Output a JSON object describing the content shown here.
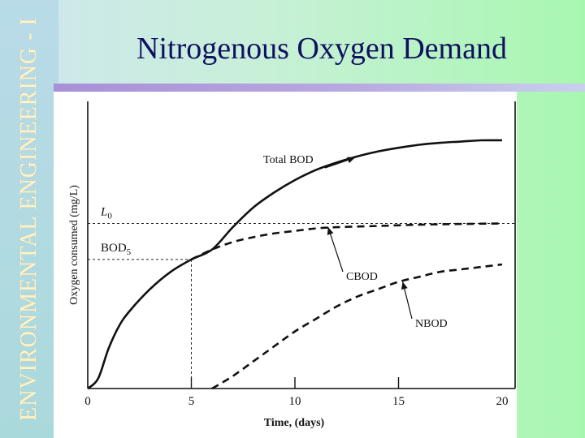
{
  "sidebar": {
    "text": "ENVIRONMENTAL ENGINEERING - I"
  },
  "title": "Nitrogenous Oxygen Demand",
  "chart_data": {
    "type": "line",
    "xlabel": "Time, (days)",
    "ylabel": "Oxygen consumed (mg/L)",
    "xlim": [
      0,
      20
    ],
    "ylim": [
      0,
      1
    ],
    "x_ticks": [
      0,
      5,
      10,
      15,
      20
    ],
    "x_tick_labels": [
      "0",
      "5",
      "10",
      "15",
      "20"
    ],
    "grid": false,
    "series": [
      {
        "name": "Total BOD",
        "style": "solid",
        "x": [
          0,
          0.5,
          1,
          1.5,
          2,
          3,
          4,
          5,
          6,
          7,
          8,
          9,
          10,
          11,
          12,
          13,
          14,
          15,
          16,
          17,
          18,
          19,
          20
        ],
        "y": [
          0,
          0.04,
          0.16,
          0.25,
          0.31,
          0.4,
          0.47,
          0.52,
          0.56,
          0.65,
          0.73,
          0.79,
          0.84,
          0.88,
          0.91,
          0.935,
          0.955,
          0.97,
          0.982,
          0.99,
          0.995,
          1.0,
          1.0
        ]
      },
      {
        "name": "CBOD",
        "style": "dashed",
        "x": [
          5,
          6,
          7,
          8,
          9,
          10,
          11,
          12,
          14,
          16,
          18,
          20
        ],
        "y": [
          0.52,
          0.56,
          0.59,
          0.61,
          0.625,
          0.635,
          0.645,
          0.65,
          0.655,
          0.66,
          0.663,
          0.665
        ]
      },
      {
        "name": "NBOD",
        "style": "dashed",
        "x": [
          6,
          7,
          8,
          9,
          10,
          11,
          12,
          13,
          14,
          15,
          16,
          17,
          18,
          19,
          20
        ],
        "y": [
          0,
          0.05,
          0.11,
          0.17,
          0.23,
          0.28,
          0.33,
          0.37,
          0.4,
          0.43,
          0.45,
          0.47,
          0.48,
          0.49,
          0.5
        ]
      }
    ],
    "reference_lines": [
      {
        "label": "L",
        "sub": "0",
        "y": 0.665,
        "x_to": 20
      },
      {
        "label": "BOD",
        "sub": "5",
        "y": 0.52,
        "x_to": 5
      }
    ],
    "annotations": [
      {
        "series": "Total BOD",
        "text": "Total BOD",
        "point_x": 12.9,
        "point_y": 0.93
      },
      {
        "series": "CBOD",
        "text": "CBOD",
        "point_x": 11.6,
        "point_y": 0.65
      },
      {
        "series": "NBOD",
        "text": "NBOD",
        "point_x": 15.2,
        "point_y": 0.43
      }
    ]
  }
}
